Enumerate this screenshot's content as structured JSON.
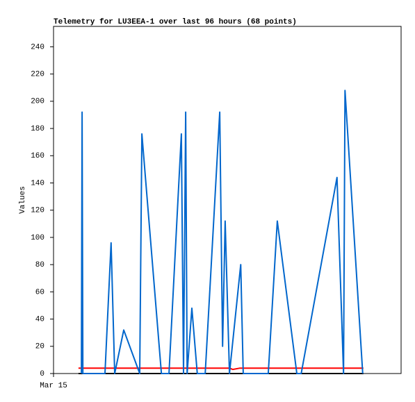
{
  "chart_data": {
    "type": "line",
    "title": "Telemetry for LU3EEA-1 over last 96 hours (68 points)",
    "y_label": "Values",
    "xlim": [
      0,
      96
    ],
    "xticks": [
      {
        "value": 0,
        "label": "Mar 15"
      }
    ],
    "ylim": [
      0,
      255
    ],
    "yticks": [
      0,
      20,
      40,
      60,
      80,
      100,
      120,
      140,
      160,
      180,
      200,
      220,
      240
    ],
    "series": [
      {
        "color": "#000000",
        "x": [
          6.9,
          85.6
        ],
        "values": [
          0,
          0
        ]
      },
      {
        "color": "#ff0000",
        "x": [
          6.9,
          48.6,
          49.5,
          51.5,
          85.6
        ],
        "values": [
          4,
          4,
          3,
          4,
          4
        ]
      },
      {
        "color": "#0066cc",
        "x": [
          7.7,
          7.9,
          8.1,
          14.2,
          15.9,
          16.9,
          19.4,
          23.8,
          24.4,
          29.8,
          31.9,
          35.3,
          35.9,
          36.5,
          36.9,
          38.2,
          39.7,
          41.9,
          45.9,
          46.7,
          47.4,
          48.6,
          51.7,
          52.4,
          59.3,
          61.8,
          67.2,
          68.4,
          78.3,
          80.1,
          80.5,
          85.4
        ],
        "values": [
          0,
          192,
          0,
          0,
          96,
          0,
          32,
          0,
          176,
          0,
          0,
          176,
          0,
          192,
          0,
          48,
          0,
          0,
          192,
          20,
          112,
          0,
          80,
          0,
          0,
          112,
          0,
          0,
          144,
          0,
          208,
          0
        ]
      }
    ]
  }
}
